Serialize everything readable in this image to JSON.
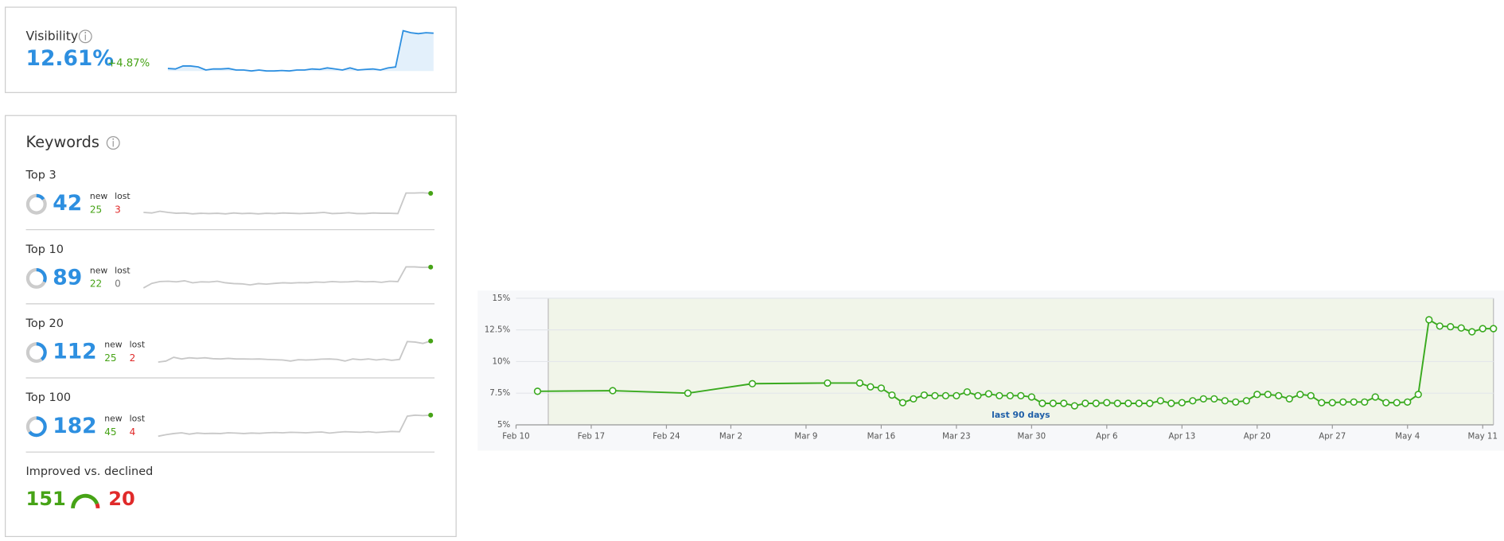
{
  "visibility": {
    "title": "Visibility",
    "value": "12.61%",
    "change": "+4.87%",
    "trend": [
      25,
      24,
      30,
      30,
      28,
      22,
      24,
      24,
      25,
      22,
      22,
      20,
      22,
      20,
      20,
      21,
      20,
      22,
      22,
      24,
      23,
      26,
      24,
      22,
      26,
      22,
      23,
      24,
      22,
      26,
      28,
      100,
      96,
      94,
      96,
      95
    ]
  },
  "keywords": {
    "title": "Keywords",
    "new_label": "new",
    "lost_label": "lost",
    "groups": [
      {
        "label": "Top 3",
        "count": 42,
        "new": 25,
        "lost": 3,
        "trend": [
          30,
          28,
          34,
          30,
          27,
          28,
          25,
          27,
          26,
          27,
          25,
          28,
          26,
          27,
          25,
          27,
          26,
          28,
          27,
          26,
          27,
          28,
          30,
          26,
          27,
          29,
          26,
          26,
          28,
          27,
          27,
          26,
          96,
          96,
          97,
          95
        ]
      },
      {
        "label": "Top 10",
        "count": 89,
        "new": 22,
        "lost": 0,
        "trend": [
          10,
          28,
          35,
          36,
          34,
          38,
          30,
          34,
          33,
          36,
          30,
          27,
          26,
          22,
          27,
          25,
          28,
          30,
          29,
          31,
          30,
          33,
          32,
          35,
          33,
          34,
          36,
          34,
          35,
          32,
          36,
          35,
          92,
          92,
          90,
          91
        ]
      },
      {
        "label": "Top 20",
        "count": 112,
        "new": 25,
        "lost": 2,
        "trend": [
          18,
          22,
          36,
          30,
          34,
          32,
          34,
          31,
          30,
          32,
          30,
          30,
          29,
          30,
          28,
          27,
          26,
          22,
          27,
          26,
          27,
          29,
          30,
          28,
          22,
          30,
          27,
          30,
          26,
          29,
          25,
          28,
          95,
          93,
          88,
          97
        ]
      },
      {
        "label": "Top 100",
        "count": 182,
        "new": 45,
        "lost": 4,
        "trend": [
          12,
          18,
          22,
          25,
          20,
          24,
          22,
          23,
          22,
          25,
          24,
          22,
          24,
          23,
          25,
          26,
          25,
          27,
          26,
          25,
          27,
          28,
          24,
          27,
          29,
          28,
          27,
          29,
          26,
          28,
          30,
          29,
          88,
          92,
          90,
          92
        ]
      }
    ],
    "improved": {
      "label": "Improved vs. declined",
      "improved": 151,
      "declined": 20
    }
  },
  "chart_data": {
    "type": "line",
    "x": [
      "Feb 12",
      "Feb 19",
      "Feb 26",
      "Mar 4",
      "Mar 11",
      "Mar 14",
      "Mar 15",
      "Mar 16",
      "Mar 17",
      "Mar 18",
      "Mar 19",
      "Mar 20",
      "Mar 21",
      "Mar 22",
      "Mar 23",
      "Mar 24",
      "Mar 25",
      "Mar 26",
      "Mar 27",
      "Mar 28",
      "Mar 29",
      "Mar 30",
      "Mar 31",
      "Apr 1",
      "Apr 2",
      "Apr 3",
      "Apr 4",
      "Apr 5",
      "Apr 6",
      "Apr 7",
      "Apr 8",
      "Apr 9",
      "Apr 10",
      "Apr 11",
      "Apr 12",
      "Apr 13",
      "Apr 14",
      "Apr 15",
      "Apr 16",
      "Apr 17",
      "Apr 18",
      "Apr 19",
      "Apr 20",
      "Apr 21",
      "Apr 22",
      "Apr 23",
      "Apr 24",
      "Apr 25",
      "Apr 26",
      "Apr 27",
      "Apr 28",
      "Apr 29",
      "Apr 30",
      "May 1",
      "May 2",
      "May 3",
      "May 4",
      "May 5",
      "May 6",
      "May 7",
      "May 8",
      "May 9",
      "May 10",
      "May 11",
      "May 12"
    ],
    "series": [
      {
        "color": "#3aaa1f",
        "values": [
          7.65,
          7.7,
          7.5,
          8.25,
          8.3,
          8.3,
          8.0,
          7.9,
          7.35,
          6.75,
          7.05,
          7.35,
          7.3,
          7.3,
          7.3,
          7.6,
          7.3,
          7.45,
          7.3,
          7.3,
          7.3,
          7.2,
          6.7,
          6.7,
          6.7,
          6.5,
          6.7,
          6.7,
          6.75,
          6.7,
          6.7,
          6.7,
          6.7,
          6.9,
          6.7,
          6.75,
          6.9,
          7.05,
          7.05,
          6.9,
          6.8,
          6.9,
          7.4,
          7.4,
          7.3,
          7.05,
          7.4,
          7.3,
          6.75,
          6.75,
          6.8,
          6.8,
          6.8,
          7.2,
          6.75,
          6.75,
          6.8,
          7.4,
          13.3,
          12.8,
          12.75,
          12.65,
          12.35,
          12.6,
          12.6
        ]
      }
    ],
    "xlim": [
      "Feb 10",
      "May 12"
    ],
    "xticks": [
      "Feb 10",
      "Feb 17",
      "Feb 24",
      "Mar 2",
      "Mar 9",
      "Mar 16",
      "Mar 23",
      "Mar 30",
      "Apr 6",
      "Apr 13",
      "Apr 20",
      "Apr 27",
      "May 4",
      "May 11"
    ],
    "ylim": [
      5,
      15
    ],
    "yticks": [
      {
        "value": 5,
        "label": "5%"
      },
      {
        "value": 7.5,
        "label": "7.5%"
      },
      {
        "value": 10,
        "label": "10%"
      },
      {
        "value": 12.5,
        "label": "12.5%"
      },
      {
        "value": 15,
        "label": "15%"
      }
    ],
    "grid": true,
    "highlight": {
      "label": "last 90 days",
      "from": "Feb 13",
      "to": "May 12"
    }
  }
}
